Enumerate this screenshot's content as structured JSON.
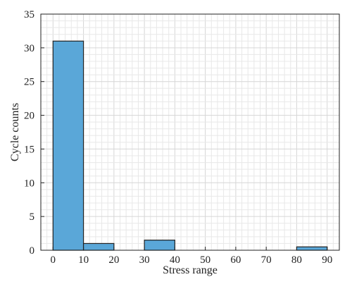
{
  "chart_data": {
    "type": "bar",
    "title": "",
    "xlabel": "Stress range",
    "ylabel": "Cycle counts",
    "xlim": [
      -4,
      94
    ],
    "ylim": [
      0,
      35
    ],
    "xticks": [
      "0",
      "10",
      "20",
      "30",
      "40",
      "50",
      "60",
      "70",
      "80",
      "90"
    ],
    "yticks": [
      "0",
      "5",
      "10",
      "15",
      "20",
      "25",
      "30",
      "35"
    ],
    "bins": [
      {
        "x0": 0,
        "x1": 10,
        "value": 31
      },
      {
        "x0": 10,
        "x1": 20,
        "value": 1
      },
      {
        "x0": 30,
        "x1": 40,
        "value": 1.5
      },
      {
        "x0": 80,
        "x1": 90,
        "value": 0.5
      }
    ],
    "grid": "minor",
    "bar_color": "#5aa7d8",
    "bar_edge_color": "#222222"
  }
}
